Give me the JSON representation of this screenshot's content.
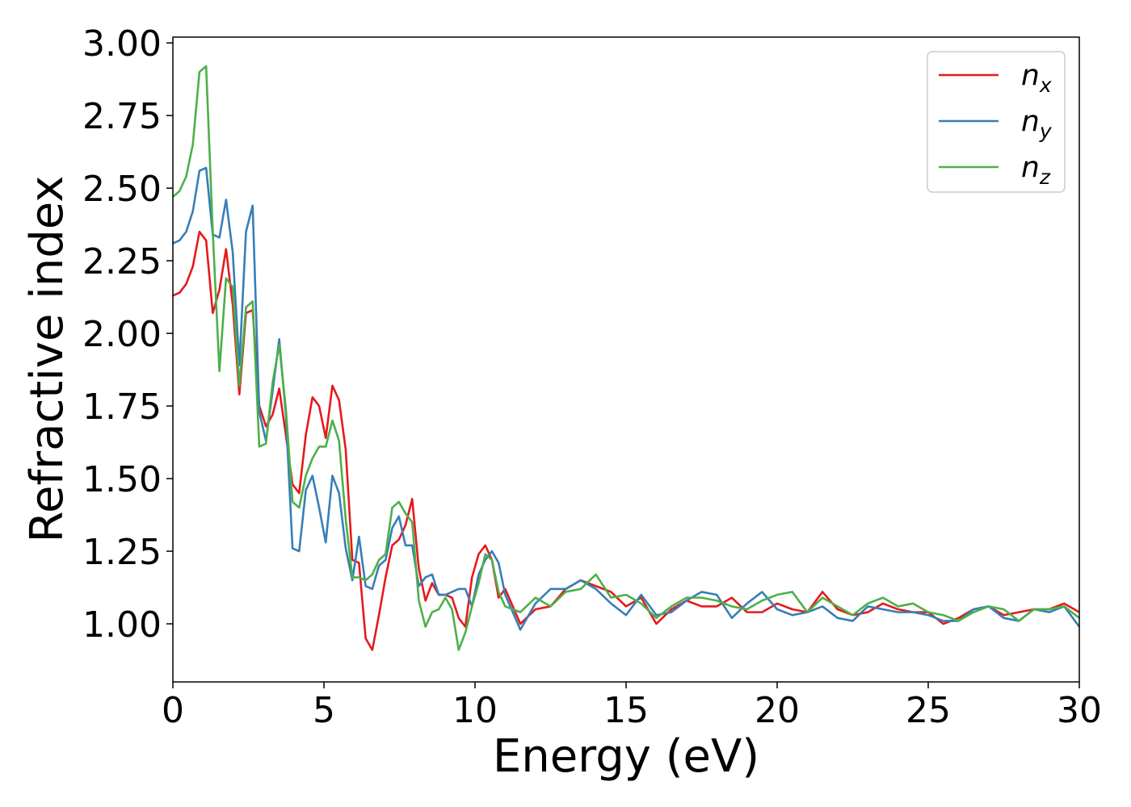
{
  "chart_data": {
    "type": "line",
    "xlabel": "Energy (eV)",
    "ylabel": "Refractive index",
    "xlim": [
      0,
      30
    ],
    "ylim": [
      0.8,
      3.02
    ],
    "xticks": [
      0,
      5,
      10,
      15,
      20,
      25,
      30
    ],
    "yticks": [
      {
        "value": 1,
        "label": "1.00"
      },
      1.25,
      {
        "value": 1.5,
        "label": "1.50"
      },
      1.75,
      {
        "value": 2,
        "label": "2.00"
      },
      2.25,
      {
        "value": 2.5,
        "label": "2.50"
      },
      2.75,
      {
        "value": 3,
        "label": "3.00"
      }
    ],
    "grid": false,
    "legend": "upper right",
    "x": [
      0,
      0.22,
      0.44,
      0.66,
      0.88,
      1.1,
      1.32,
      1.54,
      1.76,
      1.98,
      2.2,
      2.42,
      2.64,
      2.86,
      3.08,
      3.3,
      3.52,
      3.74,
      3.96,
      4.18,
      4.4,
      4.62,
      4.84,
      5.06,
      5.28,
      5.5,
      5.72,
      5.94,
      6.16,
      6.38,
      6.6,
      6.82,
      7.04,
      7.26,
      7.48,
      7.7,
      7.92,
      8.14,
      8.36,
      8.58,
      8.8,
      9.02,
      9.24,
      9.46,
      9.68,
      9.9,
      10.12,
      10.34,
      10.56,
      10.78,
      11.0,
      11.5,
      12,
      12.5,
      13,
      13.5,
      14,
      14.5,
      15,
      15.5,
      16,
      16.5,
      17,
      17.5,
      18,
      18.5,
      19,
      19.5,
      20,
      20.5,
      21,
      21.5,
      22,
      22.5,
      23,
      23.5,
      24,
      24.5,
      25,
      25.5,
      26,
      26.5,
      27,
      27.5,
      28,
      28.5,
      29,
      29.5,
      30
    ],
    "series": [
      {
        "name": "nx",
        "color": "#e41a1c",
        "values": [
          2.13,
          2.14,
          2.17,
          2.23,
          2.35,
          2.32,
          2.07,
          2.15,
          2.29,
          2.1,
          1.79,
          2.07,
          2.08,
          1.75,
          1.68,
          1.72,
          1.81,
          1.65,
          1.48,
          1.45,
          1.65,
          1.78,
          1.75,
          1.64,
          1.82,
          1.77,
          1.6,
          1.22,
          1.21,
          0.95,
          0.91,
          1.03,
          1.16,
          1.27,
          1.29,
          1.34,
          1.43,
          1.19,
          1.08,
          1.14,
          1.1,
          1.1,
          1.09,
          1.02,
          0.99,
          1.16,
          1.24,
          1.27,
          1.22,
          1.09,
          1.12,
          1.0,
          1.05,
          1.06,
          1.12,
          1.15,
          1.13,
          1.11,
          1.06,
          1.09,
          1.0,
          1.05,
          1.08,
          1.06,
          1.06,
          1.09,
          1.04,
          1.04,
          1.07,
          1.05,
          1.04,
          1.11,
          1.05,
          1.03,
          1.04,
          1.07,
          1.05,
          1.04,
          1.04,
          1.0,
          1.02,
          1.05,
          1.06,
          1.03,
          1.04,
          1.05,
          1.05,
          1.07,
          1.04
        ]
      },
      {
        "name": "ny",
        "color": "#377eb8",
        "values": [
          2.31,
          2.32,
          2.35,
          2.42,
          2.56,
          2.57,
          2.34,
          2.33,
          2.46,
          2.28,
          1.89,
          2.35,
          2.44,
          1.73,
          1.63,
          1.8,
          1.98,
          1.72,
          1.26,
          1.25,
          1.46,
          1.51,
          1.4,
          1.28,
          1.51,
          1.45,
          1.26,
          1.15,
          1.3,
          1.13,
          1.12,
          1.2,
          1.22,
          1.33,
          1.37,
          1.27,
          1.27,
          1.13,
          1.16,
          1.17,
          1.1,
          1.1,
          1.11,
          1.12,
          1.12,
          1.06,
          1.17,
          1.22,
          1.25,
          1.21,
          1.1,
          0.98,
          1.07,
          1.12,
          1.12,
          1.15,
          1.12,
          1.07,
          1.03,
          1.1,
          1.03,
          1.04,
          1.08,
          1.11,
          1.1,
          1.02,
          1.07,
          1.11,
          1.05,
          1.03,
          1.04,
          1.06,
          1.02,
          1.01,
          1.06,
          1.05,
          1.04,
          1.04,
          1.03,
          1.01,
          1.01,
          1.05,
          1.06,
          1.02,
          1.01,
          1.05,
          1.04,
          1.06,
          0.99
        ]
      },
      {
        "name": "nz",
        "color": "#4daf4a",
        "values": [
          2.47,
          2.49,
          2.54,
          2.65,
          2.9,
          2.92,
          2.35,
          1.87,
          2.19,
          2.16,
          1.82,
          2.09,
          2.11,
          1.61,
          1.62,
          1.83,
          1.96,
          1.74,
          1.42,
          1.4,
          1.51,
          1.57,
          1.61,
          1.61,
          1.7,
          1.63,
          1.36,
          1.16,
          1.16,
          1.15,
          1.17,
          1.22,
          1.24,
          1.4,
          1.42,
          1.38,
          1.35,
          1.08,
          0.99,
          1.04,
          1.05,
          1.09,
          1.05,
          0.91,
          0.97,
          1.06,
          1.14,
          1.24,
          1.22,
          1.11,
          1.06,
          1.04,
          1.09,
          1.06,
          1.11,
          1.12,
          1.17,
          1.09,
          1.1,
          1.07,
          1.02,
          1.06,
          1.09,
          1.09,
          1.08,
          1.06,
          1.05,
          1.08,
          1.1,
          1.11,
          1.04,
          1.09,
          1.06,
          1.03,
          1.07,
          1.09,
          1.06,
          1.07,
          1.04,
          1.03,
          1.01,
          1.04,
          1.06,
          1.05,
          1.01,
          1.05,
          1.05,
          1.06,
          1.02
        ]
      }
    ]
  }
}
